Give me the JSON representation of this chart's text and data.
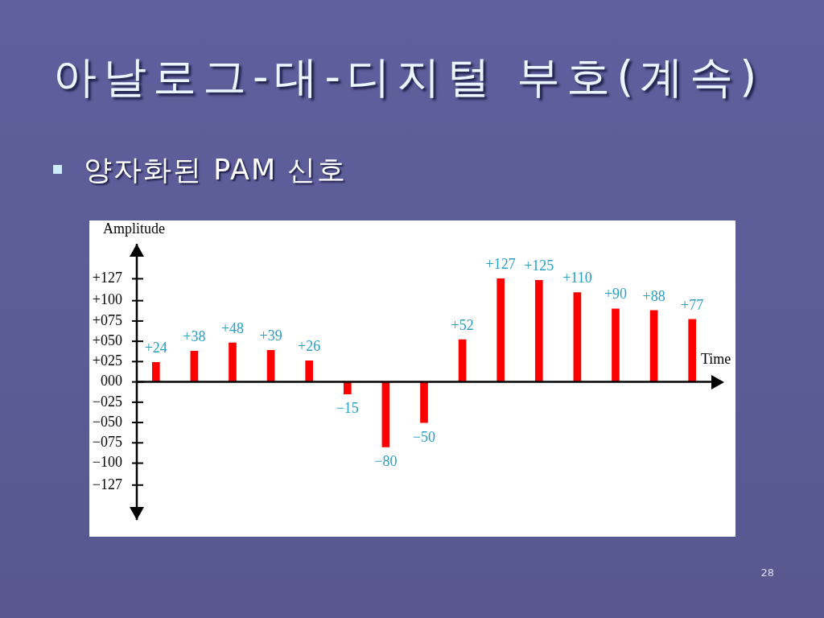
{
  "chart_data": {
    "type": "bar",
    "title": "아날로그-대-디지털 부호(계속)",
    "subtitle": "양자화된 PAM 신호",
    "xlabel": "Time",
    "ylabel": "Amplitude",
    "annotations": [
      "28"
    ],
    "categories": [
      null,
      null,
      null,
      null,
      null,
      null,
      null,
      null,
      null,
      null,
      null,
      null,
      null,
      null,
      null
    ],
    "values": [
      24,
      38,
      48,
      39,
      26,
      -15,
      -80,
      -50,
      52,
      127,
      125,
      110,
      90,
      88,
      77
    ],
    "value_labels": [
      "+24",
      "+38",
      "+48",
      "+39",
      "+26",
      "−15",
      "−80",
      "−50",
      "+52",
      "+127",
      "+125",
      "+110",
      "+90",
      "+88",
      "+77"
    ],
    "color": "#ff0000",
    "ylim": [
      -170,
      170
    ],
    "yticks": [
      {
        "value": 127,
        "label": "+127"
      },
      {
        "value": 100,
        "label": "+100"
      },
      {
        "value": 75,
        "label": "+075"
      },
      {
        "value": 50,
        "label": "+050"
      },
      {
        "value": 25,
        "label": "+025"
      },
      {
        "value": 0,
        "label": "000"
      },
      {
        "value": -25,
        "label": "−025"
      },
      {
        "value": -50,
        "label": "−050"
      },
      {
        "value": -75,
        "label": "−075"
      },
      {
        "value": -100,
        "label": "−100"
      },
      {
        "value": -127,
        "label": "−127"
      }
    ]
  }
}
